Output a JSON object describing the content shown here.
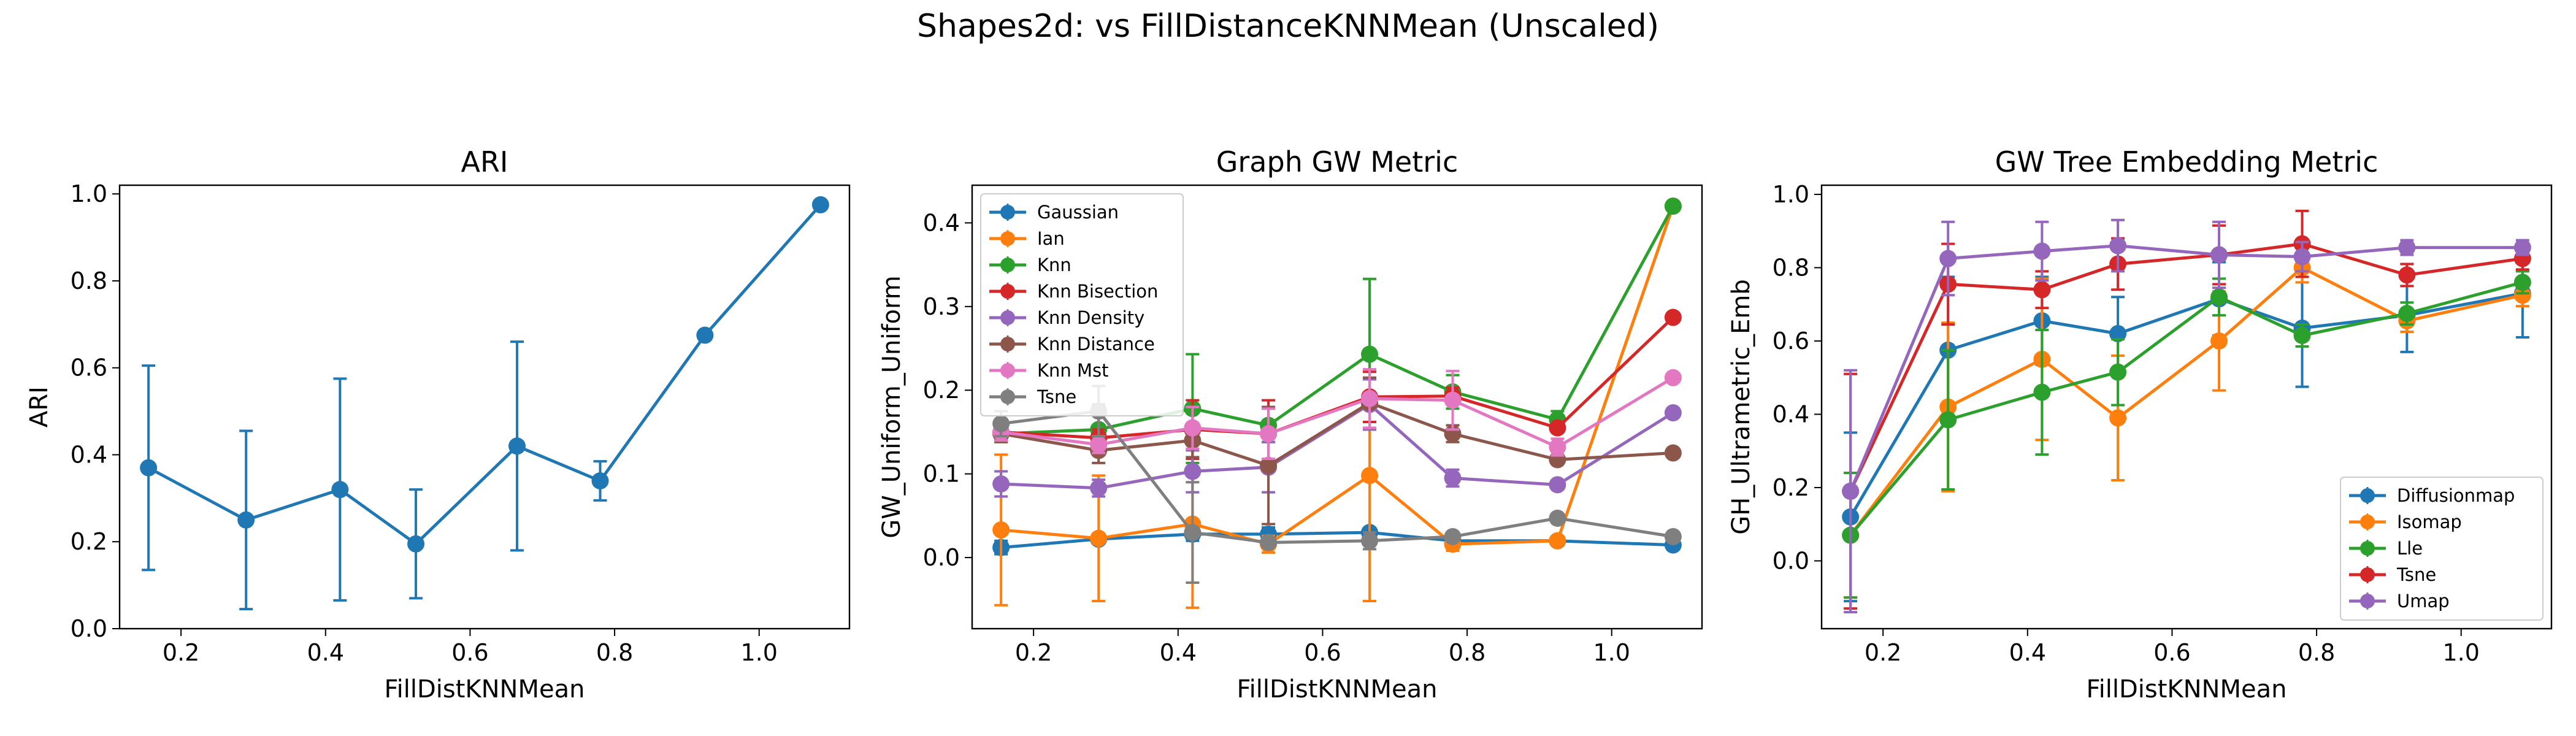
{
  "suptitle": "Shapes2d: vs FillDistanceKNNMean (Unscaled)",
  "colors": {
    "c0": "#1f77b4",
    "c1": "#ff7f0e",
    "c2": "#2ca02c",
    "c3": "#d62728",
    "c4": "#9467bd",
    "c5": "#8c564b",
    "c6": "#e377c2",
    "c7": "#7f7f7f"
  },
  "chart_data": [
    {
      "type": "line",
      "title": "ARI",
      "xlabel": "FillDistKNNMean",
      "ylabel": "ARI",
      "xlim": [
        0.115,
        1.125
      ],
      "ylim": [
        0.0,
        1.02
      ],
      "xticks": [
        0.2,
        0.4,
        0.6,
        0.8,
        1.0
      ],
      "xtick_labels": [
        "0.2",
        "0.4",
        "0.6",
        "0.8",
        "1.0"
      ],
      "yticks": [
        0.0,
        0.2,
        0.4,
        0.6,
        0.8,
        1.0
      ],
      "ytick_labels": [
        "0.0",
        "0.2",
        "0.4",
        "0.6",
        "0.8",
        "1.0"
      ],
      "x": [
        0.155,
        0.29,
        0.42,
        0.525,
        0.665,
        0.78,
        0.925,
        1.085
      ],
      "legend": "none",
      "series": [
        {
          "name": "",
          "color": "#1f77b4",
          "values": [
            0.37,
            0.25,
            0.32,
            0.195,
            0.42,
            0.34,
            0.675,
            0.975
          ],
          "err": [
            0.235,
            0.205,
            0.255,
            0.125,
            0.24,
            0.045,
            0.0,
            0.0
          ]
        }
      ]
    },
    {
      "type": "line",
      "title": "Graph GW Metric",
      "xlabel": "FillDistKNNMean",
      "ylabel": "GW_Uniform_Uniform",
      "xlim": [
        0.115,
        1.125
      ],
      "ylim": [
        -0.085,
        0.445
      ],
      "xticks": [
        0.2,
        0.4,
        0.6,
        0.8,
        1.0
      ],
      "xtick_labels": [
        "0.2",
        "0.4",
        "0.6",
        "0.8",
        "1.0"
      ],
      "yticks": [
        0.0,
        0.1,
        0.2,
        0.3,
        0.4
      ],
      "ytick_labels": [
        "0.0",
        "0.1",
        "0.2",
        "0.3",
        "0.4"
      ],
      "x": [
        0.155,
        0.29,
        0.42,
        0.525,
        0.665,
        0.78,
        0.925,
        1.085
      ],
      "legend": "upper-left",
      "series": [
        {
          "name": "Gaussian",
          "color": "#1f77b4",
          "values": [
            0.012,
            0.022,
            0.028,
            0.028,
            0.03,
            0.02,
            0.02,
            0.015
          ],
          "err": [
            0.008,
            0.005,
            0.008,
            0.008,
            0.005,
            0.005,
            0.003,
            0.003
          ]
        },
        {
          "name": "Ian",
          "color": "#ff7f0e",
          "values": [
            0.033,
            0.023,
            0.04,
            0.016,
            0.098,
            0.016,
            0.02,
            0.42
          ],
          "err": [
            0.09,
            0.075,
            0.1,
            0.01,
            0.15,
            0.008,
            0.005,
            0.0
          ]
        },
        {
          "name": "Knn",
          "color": "#2ca02c",
          "values": [
            0.148,
            0.153,
            0.178,
            0.158,
            0.243,
            0.198,
            0.165,
            0.42
          ],
          "err": [
            0.01,
            0.03,
            0.065,
            0.02,
            0.09,
            0.02,
            0.01,
            0.0
          ]
        },
        {
          "name": "Knn Bisection",
          "color": "#d62728",
          "values": [
            0.15,
            0.143,
            0.153,
            0.148,
            0.192,
            0.193,
            0.155,
            0.287
          ],
          "err": [
            0.01,
            0.01,
            0.035,
            0.04,
            0.03,
            0.01,
            0.005,
            0.0
          ]
        },
        {
          "name": "Knn Density",
          "color": "#9467bd",
          "values": [
            0.088,
            0.083,
            0.103,
            0.108,
            0.183,
            0.095,
            0.087,
            0.173
          ],
          "err": [
            0.015,
            0.01,
            0.025,
            0.03,
            0.03,
            0.01,
            0.005,
            0.0
          ]
        },
        {
          "name": "Knn Distance",
          "color": "#8c564b",
          "values": [
            0.148,
            0.128,
            0.14,
            0.11,
            0.185,
            0.148,
            0.117,
            0.125
          ],
          "err": [
            0.01,
            0.015,
            0.02,
            0.07,
            0.03,
            0.01,
            0.005,
            0.0
          ]
        },
        {
          "name": "Knn Mst",
          "color": "#e377c2",
          "values": [
            0.15,
            0.135,
            0.155,
            0.148,
            0.19,
            0.188,
            0.132,
            0.215
          ],
          "err": [
            0.01,
            0.01,
            0.025,
            0.03,
            0.035,
            0.035,
            0.01,
            0.0
          ]
        },
        {
          "name": "Tsne",
          "color": "#7f7f7f",
          "values": [
            0.16,
            0.175,
            0.03,
            0.018,
            0.02,
            0.025,
            0.047,
            0.025
          ],
          "err": [
            0.015,
            0.03,
            0.06,
            0.005,
            0.01,
            0.005,
            0.005,
            0.003
          ]
        }
      ]
    },
    {
      "type": "line",
      "title": "GW Tree Embedding Metric",
      "xlabel": "FillDistKNNMean",
      "ylabel": "GH_Ultrametric_Emb",
      "xlim": [
        0.115,
        1.125
      ],
      "ylim": [
        -0.185,
        1.025
      ],
      "xticks": [
        0.2,
        0.4,
        0.6,
        0.8,
        1.0
      ],
      "xtick_labels": [
        "0.2",
        "0.4",
        "0.6",
        "0.8",
        "1.0"
      ],
      "yticks": [
        0.0,
        0.2,
        0.4,
        0.6,
        0.8,
        1.0
      ],
      "ytick_labels": [
        "0.0",
        "0.2",
        "0.4",
        "0.6",
        "0.8",
        "1.0"
      ],
      "x": [
        0.155,
        0.29,
        0.42,
        0.525,
        0.665,
        0.78,
        0.925,
        1.085
      ],
      "legend": "lower-right",
      "series": [
        {
          "name": "Diffusionmap",
          "color": "#1f77b4",
          "values": [
            0.12,
            0.575,
            0.655,
            0.62,
            0.715,
            0.635,
            0.67,
            0.73
          ],
          "err": [
            0.23,
            0.2,
            0.12,
            0.1,
            0.1,
            0.16,
            0.1,
            0.12
          ]
        },
        {
          "name": "Isomap",
          "color": "#ff7f0e",
          "values": [
            0.07,
            0.42,
            0.55,
            0.39,
            0.6,
            0.8,
            0.655,
            0.725
          ],
          "err": [
            0.17,
            0.23,
            0.22,
            0.17,
            0.135,
            0.04,
            0.03,
            0.03
          ]
        },
        {
          "name": "Lle",
          "color": "#2ca02c",
          "values": [
            0.07,
            0.385,
            0.46,
            0.515,
            0.72,
            0.615,
            0.675,
            0.76
          ],
          "err": [
            0.17,
            0.19,
            0.17,
            0.09,
            0.05,
            0.03,
            0.03,
            0.03
          ]
        },
        {
          "name": "Tsne",
          "color": "#d62728",
          "values": [
            0.19,
            0.755,
            0.74,
            0.81,
            0.835,
            0.865,
            0.78,
            0.825
          ],
          "err": [
            0.32,
            0.11,
            0.05,
            0.07,
            0.08,
            0.09,
            0.03,
            0.03
          ]
        },
        {
          "name": "Umap",
          "color": "#9467bd",
          "values": [
            0.19,
            0.825,
            0.845,
            0.86,
            0.835,
            0.83,
            0.855,
            0.855
          ],
          "err": [
            0.33,
            0.1,
            0.08,
            0.07,
            0.09,
            0.04,
            0.02,
            0.02
          ]
        }
      ]
    }
  ]
}
